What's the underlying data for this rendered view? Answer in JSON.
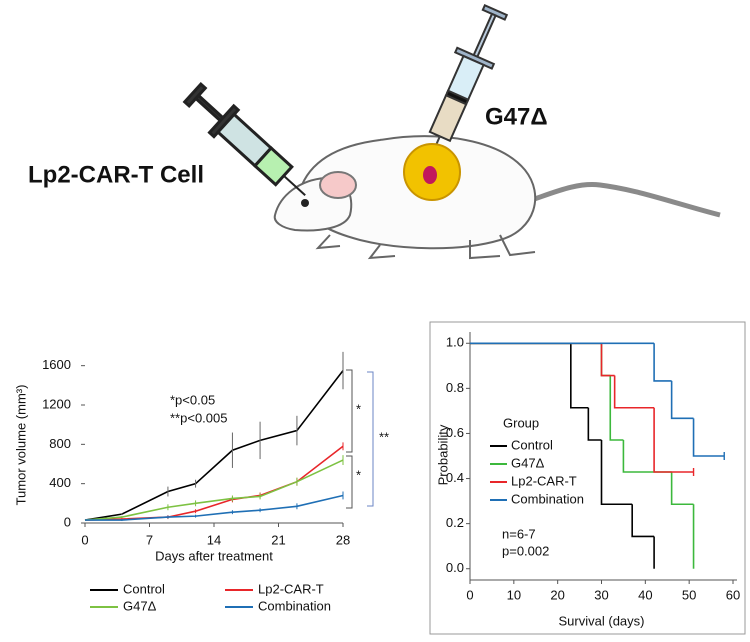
{
  "illustration": {
    "labels": [
      "Lp2-CAR-T Cell",
      "G47Δ"
    ]
  },
  "chart_data": [
    {
      "type": "line",
      "y_label": "Tumor volume (mm³)",
      "x_label": "Days after treatment",
      "x": [
        0,
        4,
        9,
        12,
        16,
        19,
        23,
        28
      ],
      "xlim": [
        0,
        28
      ],
      "xticks": [
        0,
        7,
        14,
        21,
        28
      ],
      "ylim": [
        0,
        1800
      ],
      "yticks": [
        0,
        400,
        800,
        1200,
        1600
      ],
      "series": [
        {
          "name": "Control",
          "color": "#000000",
          "values": [
            30,
            90,
            320,
            400,
            740,
            840,
            940,
            1550
          ],
          "errors": [
            0,
            10,
            50,
            40,
            180,
            190,
            150,
            190
          ]
        },
        {
          "name": "Lp2-CAR-T",
          "color": "#e8262a",
          "values": [
            30,
            40,
            60,
            120,
            240,
            280,
            420,
            780
          ],
          "errors": [
            0,
            10,
            20,
            20,
            30,
            30,
            40,
            40
          ]
        },
        {
          "name": "G47Δ",
          "color": "#7dc242",
          "values": [
            30,
            60,
            160,
            200,
            250,
            270,
            420,
            640
          ],
          "errors": [
            0,
            10,
            30,
            30,
            30,
            30,
            40,
            50
          ]
        },
        {
          "name": "Combination",
          "color": "#1f6fb5",
          "values": [
            30,
            30,
            60,
            70,
            110,
            130,
            170,
            280
          ],
          "errors": [
            0,
            10,
            15,
            15,
            20,
            20,
            30,
            40
          ]
        }
      ],
      "annotations": [
        "*p<0.05",
        "**p<0.005",
        "*",
        "*",
        "**"
      ]
    },
    {
      "type": "step",
      "y_label": "Probability",
      "x_label": "Survival (days)",
      "xlim": [
        0,
        60
      ],
      "xticks": [
        0,
        10,
        20,
        30,
        40,
        50,
        60
      ],
      "ylim": [
        -0.05,
        1.05
      ],
      "yticks": [
        {
          "value": 0,
          "label": "0.0"
        },
        {
          "value": 0.2,
          "label": "0.2"
        },
        {
          "value": 0.4,
          "label": "0.4"
        },
        {
          "value": 0.6,
          "label": "0.6"
        },
        {
          "value": 0.8,
          "label": "0.8"
        },
        {
          "value": 1,
          "label": "1.0"
        }
      ],
      "legend_title": "Group",
      "series": [
        {
          "name": "Control",
          "color": "#000000",
          "x": [
            0,
            23,
            27,
            30,
            37,
            42
          ],
          "values": [
            1,
            0.714,
            0.571,
            0.286,
            0.143,
            0
          ]
        },
        {
          "name": "G47Δ",
          "color": "#3cb83c",
          "x": [
            0,
            30,
            32,
            35,
            46,
            51
          ],
          "values": [
            1,
            0.857,
            0.571,
            0.429,
            0.286,
            0
          ]
        },
        {
          "name": "Lp2-CAR-T",
          "color": "#e8262a",
          "x": [
            0,
            30,
            33,
            42,
            51
          ],
          "values": [
            1,
            0.857,
            0.714,
            0.429,
            0.429
          ]
        },
        {
          "name": "Combination",
          "color": "#1f6fb5",
          "x": [
            0,
            42,
            46,
            51,
            58
          ],
          "values": [
            1,
            0.833,
            0.667,
            0.5,
            0.5
          ]
        }
      ],
      "annotations": [
        "n=6-7",
        "p=0.002"
      ]
    }
  ]
}
